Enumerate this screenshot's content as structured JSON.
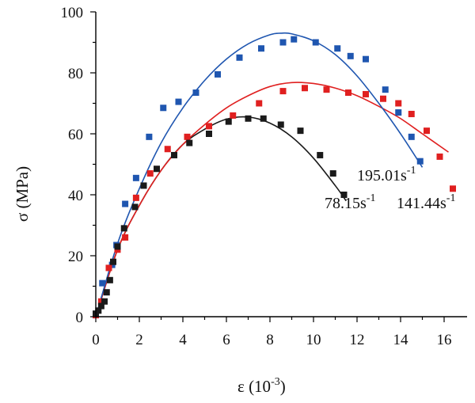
{
  "chart_data": {
    "type": "scatter",
    "title": "",
    "xlabel": "ε (10",
    "xlabel_sup": "-3",
    "xlabel_end": ")",
    "ylabel": "σ (MPa)",
    "xlim": [
      0,
      17
    ],
    "ylim": [
      0,
      100
    ],
    "xticks": [
      0,
      2,
      4,
      6,
      8,
      10,
      12,
      14,
      16
    ],
    "yticks": [
      0,
      20,
      40,
      60,
      80,
      100
    ],
    "grid": false,
    "series": [
      {
        "name": "78.15s-1",
        "color": "#1a1a1a",
        "points": [
          [
            0,
            1
          ],
          [
            0.12,
            2
          ],
          [
            0.25,
            3.5
          ],
          [
            0.4,
            5
          ],
          [
            0.5,
            8
          ],
          [
            0.65,
            12
          ],
          [
            0.8,
            18
          ],
          [
            1.0,
            23
          ],
          [
            1.3,
            29
          ],
          [
            1.8,
            36
          ],
          [
            2.2,
            43
          ],
          [
            2.8,
            48.5
          ],
          [
            3.6,
            53
          ],
          [
            4.3,
            57
          ],
          [
            5.2,
            60
          ],
          [
            6.1,
            64
          ],
          [
            7.0,
            65
          ],
          [
            7.7,
            65
          ],
          [
            8.5,
            63
          ],
          [
            9.4,
            61
          ],
          [
            10.3,
            53
          ],
          [
            10.9,
            47
          ],
          [
            11.4,
            40
          ]
        ],
        "fit": [
          [
            0,
            0
          ],
          [
            1,
            22
          ],
          [
            2,
            36.5
          ],
          [
            3,
            48
          ],
          [
            4,
            56.5
          ],
          [
            5,
            61.5
          ],
          [
            6,
            64.8
          ],
          [
            7,
            65.5
          ],
          [
            8,
            63.5
          ],
          [
            9,
            59
          ],
          [
            10,
            52
          ],
          [
            11,
            43
          ],
          [
            11.5,
            38
          ]
        ]
      },
      {
        "name": "141.44s-1",
        "color": "#e02020",
        "points": [
          [
            0,
            0.5
          ],
          [
            0.25,
            5
          ],
          [
            0.6,
            16
          ],
          [
            1.0,
            22
          ],
          [
            1.35,
            26
          ],
          [
            1.85,
            39
          ],
          [
            2.5,
            47
          ],
          [
            3.3,
            55
          ],
          [
            4.2,
            59
          ],
          [
            5.2,
            62.5
          ],
          [
            6.3,
            66
          ],
          [
            7.5,
            70
          ],
          [
            8.6,
            74
          ],
          [
            9.6,
            75
          ],
          [
            10.6,
            74.5
          ],
          [
            11.6,
            73.5
          ],
          [
            12.4,
            73
          ],
          [
            13.2,
            71.5
          ],
          [
            13.9,
            70
          ],
          [
            14.5,
            66.5
          ],
          [
            15.2,
            61
          ],
          [
            15.8,
            52.5
          ],
          [
            16.4,
            42
          ]
        ],
        "fit": [
          [
            0,
            0
          ],
          [
            1,
            22
          ],
          [
            2,
            36.5
          ],
          [
            3,
            48
          ],
          [
            4,
            56.5
          ],
          [
            5,
            63
          ],
          [
            6,
            68.5
          ],
          [
            7,
            72.5
          ],
          [
            8,
            75.5
          ],
          [
            9,
            76.8
          ],
          [
            10,
            76.5
          ],
          [
            11,
            75
          ],
          [
            12,
            72.5
          ],
          [
            13,
            69
          ],
          [
            14,
            65
          ],
          [
            15,
            60
          ],
          [
            16.2,
            54
          ]
        ]
      },
      {
        "name": "195.01s-1",
        "color": "#1f56b0",
        "points": [
          [
            0,
            0.5
          ],
          [
            0.3,
            11
          ],
          [
            0.75,
            17
          ],
          [
            0.95,
            23.5
          ],
          [
            1.35,
            37
          ],
          [
            1.85,
            45.5
          ],
          [
            2.45,
            59
          ],
          [
            3.1,
            68.5
          ],
          [
            3.8,
            70.5
          ],
          [
            4.6,
            73.5
          ],
          [
            5.6,
            79.5
          ],
          [
            6.6,
            85
          ],
          [
            7.6,
            88
          ],
          [
            8.6,
            90
          ],
          [
            9.1,
            91
          ],
          [
            10.1,
            90
          ],
          [
            11.1,
            88
          ],
          [
            11.7,
            85.5
          ],
          [
            12.4,
            84.5
          ],
          [
            13.3,
            74.5
          ],
          [
            13.9,
            67
          ],
          [
            14.5,
            59
          ],
          [
            14.9,
            51
          ]
        ],
        "fit": [
          [
            0,
            0
          ],
          [
            1,
            24
          ],
          [
            2,
            42
          ],
          [
            3,
            57
          ],
          [
            4,
            68.5
          ],
          [
            5,
            77.5
          ],
          [
            6,
            84.5
          ],
          [
            7,
            89.5
          ],
          [
            8,
            92.5
          ],
          [
            8.5,
            93
          ],
          [
            9,
            92.8
          ],
          [
            10,
            90.5
          ],
          [
            11,
            86
          ],
          [
            12,
            79
          ],
          [
            13,
            70
          ],
          [
            14,
            60
          ],
          [
            15,
            49
          ]
        ]
      }
    ],
    "annotations": [
      {
        "base": "195.01s",
        "sup": "-1"
      },
      {
        "base": "78.15s",
        "sup": "-1"
      },
      {
        "base": "141.44s",
        "sup": "-1"
      }
    ]
  }
}
